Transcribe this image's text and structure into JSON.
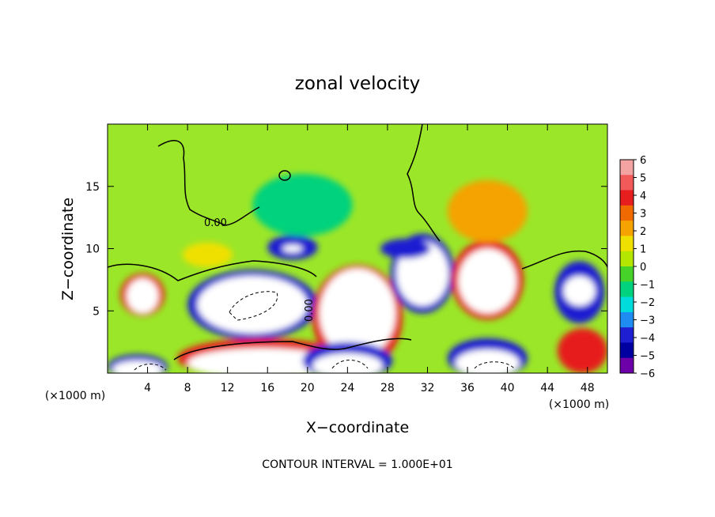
{
  "chart_data": {
    "type": "heatmap",
    "title": "zonal velocity",
    "xlabel": "X−coordinate",
    "ylabel": "Z−coordinate",
    "x_unit_left": "(×1000 m)",
    "x_unit_right": "(×1000 m)",
    "footer": "CONTOUR INTERVAL = 1.000E+01",
    "contour_label": "0.00",
    "contour_label_2": "0.00",
    "xlim": [
      0,
      50
    ],
    "ylim": [
      0,
      20
    ],
    "x_ticks": [
      "4",
      "8",
      "12",
      "16",
      "20",
      "24",
      "28",
      "32",
      "36",
      "40",
      "44",
      "48"
    ],
    "x_tick_values": [
      4,
      8,
      12,
      16,
      20,
      24,
      28,
      32,
      36,
      40,
      44,
      48
    ],
    "y_ticks": [
      "5",
      "10",
      "15"
    ],
    "y_tick_values": [
      5,
      10,
      15
    ],
    "colorbar": {
      "ticks": [
        "6",
        "5",
        "4",
        "3",
        "2",
        "1",
        "0",
        "−1",
        "−2",
        "−3",
        "−4",
        "−5",
        "−6"
      ],
      "values": [
        6,
        5,
        4,
        3,
        2,
        1,
        0,
        -1,
        -2,
        -3,
        -4,
        -5,
        -6
      ],
      "colors": [
        "#f4a3a3",
        "#f25a5a",
        "#e61e1e",
        "#f06a00",
        "#f5a300",
        "#f0e000",
        "#b4e600",
        "#46d228",
        "#00d27d",
        "#00dcdc",
        "#1e8cf0",
        "#1e1ed2",
        "#0000a0",
        "#6e00aa"
      ]
    },
    "background_color": "#9be628",
    "field_blobs": [
      {
        "x": 3.5,
        "y": 6.3,
        "rx": 2.2,
        "ry": 1.7,
        "c": "#e61e1e"
      },
      {
        "x": 3.5,
        "y": 6.2,
        "rx": 1.6,
        "ry": 1.4,
        "c": "#ffffff"
      },
      {
        "x": 14.5,
        "y": 5.5,
        "rx": 6.5,
        "ry": 2.8,
        "c": "#1e1ed2"
      },
      {
        "x": 14.5,
        "y": 5.5,
        "rx": 5.5,
        "ry": 2.3,
        "c": "#ffffff"
      },
      {
        "x": 25.0,
        "y": 4.5,
        "rx": 4.5,
        "ry": 4.2,
        "c": "#e61e1e"
      },
      {
        "x": 25.0,
        "y": 4.8,
        "rx": 3.8,
        "ry": 3.6,
        "c": "#ffffff"
      },
      {
        "x": 31.5,
        "y": 8.0,
        "rx": 3.2,
        "ry": 3.2,
        "c": "#1e1ed2"
      },
      {
        "x": 31.5,
        "y": 8.0,
        "rx": 2.6,
        "ry": 2.6,
        "c": "#ffffff"
      },
      {
        "x": 38.0,
        "y": 7.5,
        "rx": 3.6,
        "ry": 3.2,
        "c": "#e61e1e"
      },
      {
        "x": 38.0,
        "y": 7.4,
        "rx": 2.9,
        "ry": 2.6,
        "c": "#ffffff"
      },
      {
        "x": 47.2,
        "y": 6.5,
        "rx": 2.5,
        "ry": 2.5,
        "c": "#1e1ed2"
      },
      {
        "x": 47.2,
        "y": 6.6,
        "rx": 1.6,
        "ry": 1.2,
        "c": "#ffffff"
      },
      {
        "x": 15.5,
        "y": 1.2,
        "rx": 8.5,
        "ry": 1.6,
        "c": "#e61e1e"
      },
      {
        "x": 15.5,
        "y": 0.8,
        "rx": 7.5,
        "ry": 1.2,
        "c": "#ffffff"
      },
      {
        "x": 3.0,
        "y": 0.5,
        "rx": 3.0,
        "ry": 1.0,
        "c": "#1e1ed2"
      },
      {
        "x": 3.0,
        "y": 0.3,
        "rx": 2.5,
        "ry": 0.7,
        "c": "#ffffff"
      },
      {
        "x": 24.0,
        "y": 1.0,
        "rx": 4.5,
        "ry": 1.5,
        "c": "#1e1ed2"
      },
      {
        "x": 24.0,
        "y": 0.6,
        "rx": 3.5,
        "ry": 1.0,
        "c": "#ffffff"
      },
      {
        "x": 38.0,
        "y": 1.2,
        "rx": 4.0,
        "ry": 1.6,
        "c": "#1e1ed2"
      },
      {
        "x": 38.0,
        "y": 0.8,
        "rx": 3.2,
        "ry": 1.1,
        "c": "#ffffff"
      },
      {
        "x": 47.5,
        "y": 1.8,
        "rx": 2.5,
        "ry": 1.8,
        "c": "#e61e1e"
      },
      {
        "x": 18.5,
        "y": 10.1,
        "rx": 2.5,
        "ry": 1.0,
        "c": "#1e1ed2"
      },
      {
        "x": 18.5,
        "y": 10.0,
        "rx": 1.0,
        "ry": 0.3,
        "c": "#ffffff"
      },
      {
        "x": 29.8,
        "y": 10.0,
        "rx": 2.5,
        "ry": 0.8,
        "c": "#1e1ed2"
      },
      {
        "x": 38.0,
        "y": 13.0,
        "rx": 4.0,
        "ry": 2.5,
        "c": "#f5a300"
      },
      {
        "x": 19.5,
        "y": 13.5,
        "rx": 5.0,
        "ry": 2.5,
        "c": "#00d27d"
      },
      {
        "x": 10.0,
        "y": 9.5,
        "rx": 2.5,
        "ry": 1.0,
        "c": "#f0e000"
      }
    ]
  }
}
